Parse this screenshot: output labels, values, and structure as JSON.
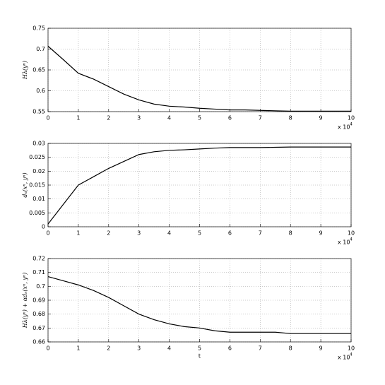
{
  "chart_data": [
    {
      "type": "line",
      "ylabel": "Hλ(yⁿ)",
      "x": [
        0,
        0.5,
        1,
        1.5,
        2,
        2.5,
        3,
        3.5,
        4,
        4.5,
        5,
        5.5,
        6,
        6.5,
        7,
        7.5,
        8,
        8.5,
        9,
        9.5,
        10
      ],
      "values": [
        0.707,
        0.675,
        0.642,
        0.628,
        0.61,
        0.592,
        0.578,
        0.568,
        0.563,
        0.561,
        0.558,
        0.556,
        0.554,
        0.554,
        0.553,
        0.552,
        0.551,
        0.551,
        0.551,
        0.551,
        0.551
      ],
      "color": "#000000",
      "xlim": [
        0,
        10
      ],
      "xticks": [
        0,
        1,
        2,
        3,
        4,
        5,
        6,
        7,
        8,
        9,
        10
      ],
      "ylim": [
        0.55,
        0.75
      ],
      "yticks": [
        0.55,
        0.6,
        0.65,
        0.7,
        0.75
      ],
      "grid": true,
      "x_multiplier": {
        "text": "x 10",
        "exponent": "4"
      }
    },
    {
      "type": "line",
      "ylabel": "dₙ(xⁿ, yⁿ)",
      "x": [
        0,
        0.5,
        1,
        1.5,
        2,
        2.5,
        3,
        3.5,
        4,
        4.5,
        5,
        5.5,
        6,
        6.5,
        7,
        7.5,
        8,
        8.5,
        9,
        9.5,
        10
      ],
      "values": [
        0.001,
        0.008,
        0.015,
        0.018,
        0.021,
        0.0235,
        0.026,
        0.027,
        0.0275,
        0.0277,
        0.028,
        0.0283,
        0.0285,
        0.0285,
        0.0285,
        0.0286,
        0.0287,
        0.0287,
        0.0287,
        0.0287,
        0.0287
      ],
      "color": "#000000",
      "xlim": [
        0,
        10
      ],
      "xticks": [
        0,
        1,
        2,
        3,
        4,
        5,
        6,
        7,
        8,
        9,
        10
      ],
      "ylim": [
        0,
        0.03
      ],
      "yticks": [
        0,
        0.005,
        0.01,
        0.015,
        0.02,
        0.025,
        0.03
      ],
      "grid": true,
      "x_multiplier": {
        "text": "x 10",
        "exponent": "4"
      }
    },
    {
      "type": "line",
      "ylabel": "Hλ(yⁿ) + αdₙ(xⁿ, yⁿ)",
      "xlabel": "t",
      "x": [
        0,
        0.5,
        1,
        1.5,
        2,
        2.5,
        3,
        3.5,
        4,
        4.5,
        5,
        5.5,
        6,
        6.5,
        7,
        7.5,
        8,
        8.5,
        9,
        9.5,
        10
      ],
      "values": [
        0.707,
        0.704,
        0.701,
        0.697,
        0.692,
        0.686,
        0.68,
        0.676,
        0.673,
        0.671,
        0.67,
        0.668,
        0.667,
        0.667,
        0.667,
        0.667,
        0.666,
        0.666,
        0.666,
        0.666,
        0.666
      ],
      "color": "#000000",
      "xlim": [
        0,
        10
      ],
      "xticks": [
        0,
        1,
        2,
        3,
        4,
        5,
        6,
        7,
        8,
        9,
        10
      ],
      "ylim": [
        0.66,
        0.72
      ],
      "yticks": [
        0.66,
        0.67,
        0.68,
        0.69,
        0.7,
        0.71,
        0.72
      ],
      "grid": true,
      "x_multiplier": {
        "text": "x 10",
        "exponent": "4"
      }
    }
  ]
}
